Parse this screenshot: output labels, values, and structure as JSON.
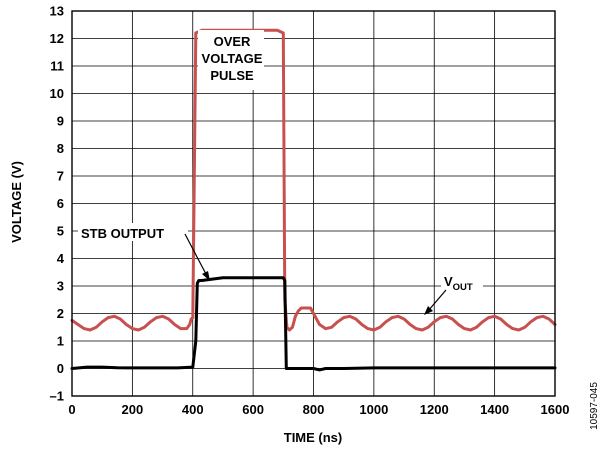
{
  "chart_data": {
    "type": "line",
    "title": "",
    "xlabel": "TIME (ns)",
    "ylabel": "VOLTAGE (V)",
    "xlim": [
      0,
      1600
    ],
    "ylim": [
      -1,
      13
    ],
    "x_ticks": [
      0,
      200,
      400,
      600,
      800,
      1000,
      1200,
      1400,
      1600
    ],
    "y_ticks": [
      -1,
      0,
      1,
      2,
      3,
      4,
      5,
      6,
      7,
      8,
      9,
      10,
      11,
      12,
      13
    ],
    "x_tick_labels": [
      "0",
      "200",
      "400",
      "600",
      "800",
      "1000",
      "1200",
      "1400",
      "1600"
    ],
    "y_tick_labels": [
      "–1",
      "0",
      "1",
      "2",
      "3",
      "4",
      "5",
      "6",
      "7",
      "8",
      "9",
      "10",
      "11",
      "12",
      "13"
    ],
    "grid": true,
    "series": [
      {
        "name": "VOUT",
        "color": "#c8504f",
        "x": [
          0,
          20,
          40,
          60,
          80,
          100,
          120,
          140,
          160,
          180,
          200,
          220,
          240,
          260,
          280,
          300,
          320,
          340,
          360,
          380,
          390,
          395,
          400,
          410,
          430,
          500,
          600,
          680,
          700,
          705,
          712,
          720,
          730,
          740,
          750,
          760,
          770,
          780,
          790,
          800,
          810,
          820,
          840,
          860,
          880,
          900,
          920,
          940,
          960,
          980,
          1000,
          1020,
          1040,
          1060,
          1080,
          1100,
          1120,
          1140,
          1160,
          1180,
          1200,
          1220,
          1240,
          1260,
          1280,
          1300,
          1320,
          1340,
          1360,
          1380,
          1400,
          1420,
          1440,
          1460,
          1480,
          1500,
          1520,
          1540,
          1560,
          1580,
          1600
        ],
        "y": [
          1.75,
          1.6,
          1.45,
          1.4,
          1.5,
          1.7,
          1.85,
          1.9,
          1.8,
          1.6,
          1.45,
          1.4,
          1.5,
          1.7,
          1.85,
          1.9,
          1.8,
          1.6,
          1.45,
          1.45,
          1.6,
          1.8,
          1.85,
          12.2,
          12.3,
          12.3,
          12.3,
          12.3,
          12.2,
          2.5,
          1.5,
          1.4,
          1.5,
          1.9,
          2.1,
          2.2,
          2.2,
          2.2,
          2.2,
          2.0,
          1.8,
          1.6,
          1.45,
          1.5,
          1.7,
          1.85,
          1.9,
          1.8,
          1.6,
          1.45,
          1.4,
          1.5,
          1.7,
          1.85,
          1.9,
          1.8,
          1.6,
          1.45,
          1.4,
          1.5,
          1.7,
          1.85,
          1.9,
          1.8,
          1.6,
          1.45,
          1.4,
          1.5,
          1.7,
          1.85,
          1.9,
          1.8,
          1.6,
          1.45,
          1.4,
          1.5,
          1.7,
          1.85,
          1.9,
          1.8,
          1.6
        ]
      },
      {
        "name": "STB OUTPUT",
        "color": "#000000",
        "x": [
          0,
          50,
          100,
          150,
          200,
          250,
          300,
          350,
          400,
          410,
          415,
          420,
          430,
          500,
          600,
          700,
          705,
          710,
          800,
          820,
          840,
          900,
          1000,
          1200,
          1400,
          1600
        ],
        "y": [
          0.0,
          0.05,
          0.05,
          0.03,
          0.02,
          0.02,
          0.02,
          0.02,
          0.05,
          1.0,
          3.1,
          3.2,
          3.2,
          3.3,
          3.3,
          3.3,
          3.2,
          0.0,
          0.0,
          -0.05,
          0.0,
          0.0,
          0.02,
          0.02,
          0.02,
          0.02
        ]
      }
    ],
    "annotations": {
      "pulse_line1": "OVER",
      "pulse_line2": "VOLTAGE",
      "pulse_line3": "PULSE",
      "stb": "STB OUTPUT",
      "vout_main": "V",
      "vout_sub": "OUT"
    },
    "figure_id": "10597-045"
  }
}
